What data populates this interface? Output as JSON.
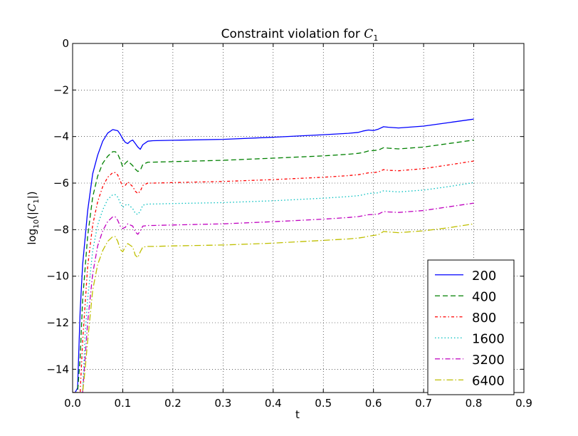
{
  "chart_data": {
    "type": "line",
    "title": "Constraint violation for C₁",
    "title_parts": {
      "prefix": "Constraint violation for ",
      "symbol": "C",
      "subscript": "1"
    },
    "xlabel": "t",
    "ylabel": "log₁₀(|C₁|)",
    "ylabel_parts": {
      "log": "log",
      "logsub": "10",
      "open": "(|",
      "symbol": "C",
      "subscript": "1",
      "close": "|)"
    },
    "xlim": [
      0.0,
      0.9
    ],
    "ylim": [
      -15,
      0
    ],
    "xticks": [
      0.0,
      0.1,
      0.2,
      0.3,
      0.4,
      0.5,
      0.6,
      0.7,
      0.8,
      0.9
    ],
    "xtick_labels": [
      "0.0",
      "0.1",
      "0.2",
      "0.3",
      "0.4",
      "0.5",
      "0.6",
      "0.7",
      "0.8",
      "0.9"
    ],
    "yticks": [
      0,
      -2,
      -4,
      -6,
      -8,
      -10,
      -12,
      -14
    ],
    "ytick_labels": [
      "0",
      "−2",
      "−4",
      "−6",
      "−8",
      "−10",
      "−12",
      "−14"
    ],
    "grid": true,
    "legend_position": "lower-right",
    "series": [
      {
        "name": "200",
        "color": "#0000ff",
        "dash": "",
        "x": [
          0.0,
          0.005,
          0.01,
          0.015,
          0.02,
          0.03,
          0.04,
          0.05,
          0.06,
          0.07,
          0.08,
          0.09,
          0.095,
          0.1,
          0.105,
          0.11,
          0.115,
          0.12,
          0.125,
          0.13,
          0.135,
          0.14,
          0.15,
          0.16,
          0.2,
          0.3,
          0.4,
          0.5,
          0.55,
          0.57,
          0.58,
          0.59,
          0.6,
          0.61,
          0.62,
          0.63,
          0.65,
          0.7,
          0.75,
          0.8
        ],
        "y": [
          -15.0,
          -15.0,
          -14.8,
          -11.5,
          -9.5,
          -7.2,
          -5.6,
          -4.8,
          -4.2,
          -3.85,
          -3.7,
          -3.75,
          -3.9,
          -4.1,
          -4.25,
          -4.3,
          -4.2,
          -4.15,
          -4.3,
          -4.45,
          -4.55,
          -4.35,
          -4.2,
          -4.18,
          -4.16,
          -4.12,
          -4.03,
          -3.92,
          -3.86,
          -3.82,
          -3.76,
          -3.72,
          -3.74,
          -3.68,
          -3.58,
          -3.6,
          -3.63,
          -3.55,
          -3.4,
          -3.25
        ]
      },
      {
        "name": "400",
        "color": "#008000",
        "dash": "7,4",
        "x": [
          0.0,
          0.01,
          0.015,
          0.02,
          0.03,
          0.04,
          0.05,
          0.06,
          0.07,
          0.08,
          0.085,
          0.09,
          0.095,
          0.1,
          0.105,
          0.11,
          0.12,
          0.125,
          0.13,
          0.135,
          0.14,
          0.15,
          0.16,
          0.2,
          0.3,
          0.4,
          0.5,
          0.55,
          0.57,
          0.58,
          0.59,
          0.6,
          0.61,
          0.62,
          0.63,
          0.65,
          0.7,
          0.75,
          0.8
        ],
        "y": [
          -15.0,
          -15.0,
          -13.5,
          -11.0,
          -8.3,
          -6.6,
          -5.7,
          -5.15,
          -4.85,
          -4.65,
          -4.65,
          -4.75,
          -5.0,
          -5.3,
          -5.15,
          -5.05,
          -5.25,
          -5.4,
          -5.5,
          -5.45,
          -5.2,
          -5.1,
          -5.1,
          -5.08,
          -5.02,
          -4.93,
          -4.83,
          -4.76,
          -4.72,
          -4.68,
          -4.62,
          -4.6,
          -4.58,
          -4.48,
          -4.5,
          -4.53,
          -4.45,
          -4.3,
          -4.15
        ]
      },
      {
        "name": "800",
        "color": "#ff0000",
        "dash": "4,3,1.5,3",
        "x": [
          0.0,
          0.015,
          0.02,
          0.03,
          0.04,
          0.05,
          0.06,
          0.07,
          0.08,
          0.085,
          0.09,
          0.095,
          0.1,
          0.105,
          0.11,
          0.12,
          0.125,
          0.13,
          0.135,
          0.14,
          0.15,
          0.16,
          0.2,
          0.3,
          0.4,
          0.5,
          0.55,
          0.57,
          0.58,
          0.59,
          0.6,
          0.61,
          0.62,
          0.63,
          0.65,
          0.7,
          0.75,
          0.8
        ],
        "y": [
          -15.0,
          -15.0,
          -12.8,
          -9.6,
          -7.8,
          -6.8,
          -6.15,
          -5.75,
          -5.55,
          -5.55,
          -5.65,
          -5.9,
          -6.15,
          -6.1,
          -5.95,
          -6.15,
          -6.35,
          -6.45,
          -6.35,
          -6.1,
          -6.0,
          -6.0,
          -5.98,
          -5.93,
          -5.85,
          -5.75,
          -5.68,
          -5.64,
          -5.6,
          -5.56,
          -5.55,
          -5.52,
          -5.42,
          -5.45,
          -5.47,
          -5.38,
          -5.22,
          -5.05
        ]
      },
      {
        "name": "1600",
        "color": "#00bfbf",
        "dash": "1.5,3",
        "x": [
          0.0,
          0.02,
          0.025,
          0.03,
          0.04,
          0.05,
          0.06,
          0.07,
          0.08,
          0.085,
          0.09,
          0.095,
          0.1,
          0.105,
          0.11,
          0.12,
          0.125,
          0.13,
          0.135,
          0.14,
          0.15,
          0.16,
          0.2,
          0.3,
          0.4,
          0.5,
          0.55,
          0.57,
          0.58,
          0.59,
          0.6,
          0.61,
          0.62,
          0.63,
          0.65,
          0.7,
          0.75,
          0.8
        ],
        "y": [
          -15.0,
          -15.0,
          -12.5,
          -11.0,
          -8.9,
          -7.8,
          -7.15,
          -6.7,
          -6.5,
          -6.5,
          -6.6,
          -6.85,
          -7.05,
          -6.95,
          -6.9,
          -7.1,
          -7.3,
          -7.35,
          -7.2,
          -6.95,
          -6.9,
          -6.9,
          -6.88,
          -6.84,
          -6.76,
          -6.65,
          -6.58,
          -6.54,
          -6.5,
          -6.45,
          -6.43,
          -6.42,
          -6.33,
          -6.35,
          -6.38,
          -6.3,
          -6.15,
          -5.98
        ]
      },
      {
        "name": "3200",
        "color": "#bf00bf",
        "dash": "7,3,1.5,3",
        "x": [
          0.0,
          0.02,
          0.025,
          0.03,
          0.04,
          0.05,
          0.06,
          0.07,
          0.08,
          0.085,
          0.09,
          0.095,
          0.1,
          0.105,
          0.11,
          0.12,
          0.125,
          0.13,
          0.135,
          0.14,
          0.15,
          0.16,
          0.2,
          0.3,
          0.4,
          0.5,
          0.55,
          0.57,
          0.58,
          0.59,
          0.6,
          0.61,
          0.62,
          0.63,
          0.65,
          0.7,
          0.75,
          0.8
        ],
        "y": [
          -15.0,
          -15.0,
          -13.5,
          -12.0,
          -9.9,
          -8.7,
          -8.05,
          -7.65,
          -7.45,
          -7.45,
          -7.6,
          -7.85,
          -7.95,
          -7.9,
          -7.75,
          -7.85,
          -8.1,
          -8.2,
          -8.05,
          -7.85,
          -7.82,
          -7.82,
          -7.8,
          -7.75,
          -7.66,
          -7.55,
          -7.48,
          -7.44,
          -7.4,
          -7.36,
          -7.35,
          -7.33,
          -7.22,
          -7.24,
          -7.26,
          -7.18,
          -7.02,
          -6.86
        ]
      },
      {
        "name": "6400",
        "color": "#bfbf00",
        "dash": "9,3,1.5,3",
        "x": [
          0.0,
          0.02,
          0.025,
          0.03,
          0.04,
          0.05,
          0.06,
          0.07,
          0.08,
          0.085,
          0.09,
          0.095,
          0.1,
          0.105,
          0.11,
          0.12,
          0.125,
          0.13,
          0.135,
          0.14,
          0.15,
          0.16,
          0.2,
          0.3,
          0.4,
          0.5,
          0.55,
          0.57,
          0.58,
          0.59,
          0.6,
          0.61,
          0.62,
          0.63,
          0.65,
          0.7,
          0.75,
          0.8
        ],
        "y": [
          -15.0,
          -15.0,
          -14.0,
          -12.8,
          -10.6,
          -9.5,
          -8.9,
          -8.5,
          -8.3,
          -8.3,
          -8.5,
          -8.85,
          -8.95,
          -8.75,
          -8.6,
          -8.75,
          -9.1,
          -9.2,
          -8.95,
          -8.75,
          -8.72,
          -8.72,
          -8.7,
          -8.66,
          -8.58,
          -8.46,
          -8.4,
          -8.36,
          -8.33,
          -8.28,
          -8.25,
          -8.22,
          -8.08,
          -8.1,
          -8.13,
          -8.05,
          -7.92,
          -7.75
        ]
      }
    ]
  }
}
